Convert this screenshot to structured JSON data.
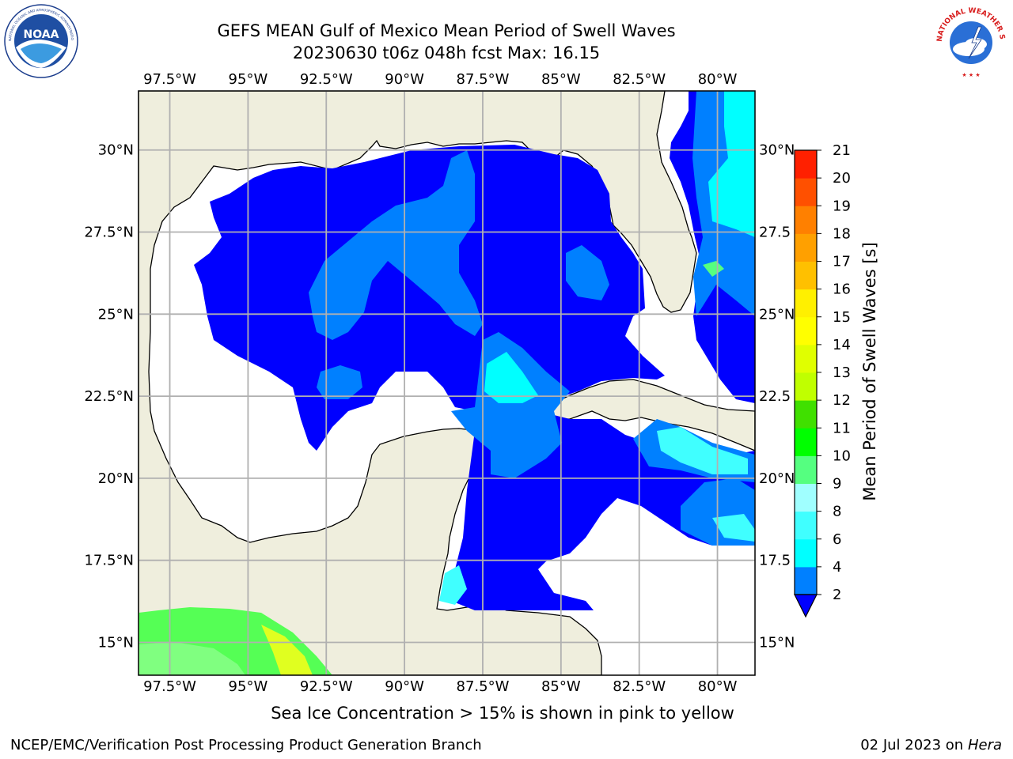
{
  "header": {
    "title_line1": "GEFS MEAN Gulf of Mexico Mean Period of Swell Waves",
    "title_line2": "20230630 t06z 048h fcst   Max: 16.15"
  },
  "logos": {
    "left": {
      "icon": "noaa-logo",
      "text": "NOAA",
      "ring_text": "NATIONAL OCEANIC AND ATMOSPHERIC ADMINISTRATION • U.S. DEPARTMENT OF COMMERCE"
    },
    "right": {
      "icon": "nws-logo",
      "ring_text": "NATIONAL WEATHER SERVICE"
    }
  },
  "map": {
    "lon_range": [
      -98.5,
      -78.8
    ],
    "lat_range": [
      14.0,
      31.8
    ],
    "lon_ticks": [
      {
        "value": -97.5,
        "label": "97.5°W"
      },
      {
        "value": -95.0,
        "label": "95°W"
      },
      {
        "value": -92.5,
        "label": "92.5°W"
      },
      {
        "value": -90.0,
        "label": "90°W"
      },
      {
        "value": -87.5,
        "label": "87.5°W"
      },
      {
        "value": -85.0,
        "label": "85°W"
      },
      {
        "value": -82.5,
        "label": "82.5°W"
      },
      {
        "value": -80.0,
        "label": "80°W"
      }
    ],
    "lat_ticks": [
      {
        "value": 30.0,
        "label": "30°N"
      },
      {
        "value": 27.5,
        "label": "27.5°N"
      },
      {
        "value": 25.0,
        "label": "25°N"
      },
      {
        "value": 22.5,
        "label": "22.5°N"
      },
      {
        "value": 20.0,
        "label": "20°N"
      },
      {
        "value": 17.5,
        "label": "17.5°N"
      },
      {
        "value": 15.0,
        "label": "15°N"
      }
    ],
    "right_lat_labels": [
      "30°N",
      "27.5",
      "25°N",
      "22.5",
      "20°N",
      "17.5",
      "15°N"
    ],
    "gridlines": true,
    "colors": {
      "land": "#efeedd",
      "band_2_4": "#0000ff",
      "band_4_6": "#0080ff",
      "band_6_8": "#00ffff",
      "band_8_9": "#40ffff",
      "pacific_green": "#55ff55",
      "pacific_lightgreen": "#80ff80",
      "pacific_yellow": "#e0ff20"
    }
  },
  "colorbar": {
    "label": "Mean Period of Swell Waves [s]",
    "ticks": [
      "2",
      "4",
      "6",
      "8",
      "9",
      "10",
      "11",
      "12",
      "13",
      "14",
      "15",
      "16",
      "17",
      "18",
      "19",
      "20",
      "21"
    ],
    "bands": [
      {
        "from": "2",
        "to": "4",
        "color": "#0080ff"
      },
      {
        "from": "4",
        "to": "6",
        "color": "#00ffff"
      },
      {
        "from": "6",
        "to": "8",
        "color": "#40ffff"
      },
      {
        "from": "8",
        "to": "9",
        "color": "#a0ffff"
      },
      {
        "from": "9",
        "to": "10",
        "color": "#55ff80"
      },
      {
        "from": "10",
        "to": "11",
        "color": "#00ff00"
      },
      {
        "from": "11",
        "to": "12",
        "color": "#40e000"
      },
      {
        "from": "12",
        "to": "13",
        "color": "#c0ff00"
      },
      {
        "from": "13",
        "to": "14",
        "color": "#e0ff00"
      },
      {
        "from": "14",
        "to": "15",
        "color": "#ffff00"
      },
      {
        "from": "15",
        "to": "16",
        "color": "#fff000"
      },
      {
        "from": "16",
        "to": "17",
        "color": "#ffc000"
      },
      {
        "from": "17",
        "to": "18",
        "color": "#ffa000"
      },
      {
        "from": "18",
        "to": "19",
        "color": "#ff8000"
      },
      {
        "from": "19",
        "to": "20",
        "color": "#ff5000"
      },
      {
        "from": "20",
        "to": "21",
        "color": "#ff2000"
      }
    ],
    "under_color": "#0000ff",
    "extend": "min"
  },
  "caption": "Sea Ice Concentration > 15% is shown in pink to yellow",
  "footer": {
    "left": "NCEP/EMC/Verification Post Processing Product Generation Branch",
    "right_date": "02 Jul 2023 on ",
    "right_host": "Hera"
  }
}
